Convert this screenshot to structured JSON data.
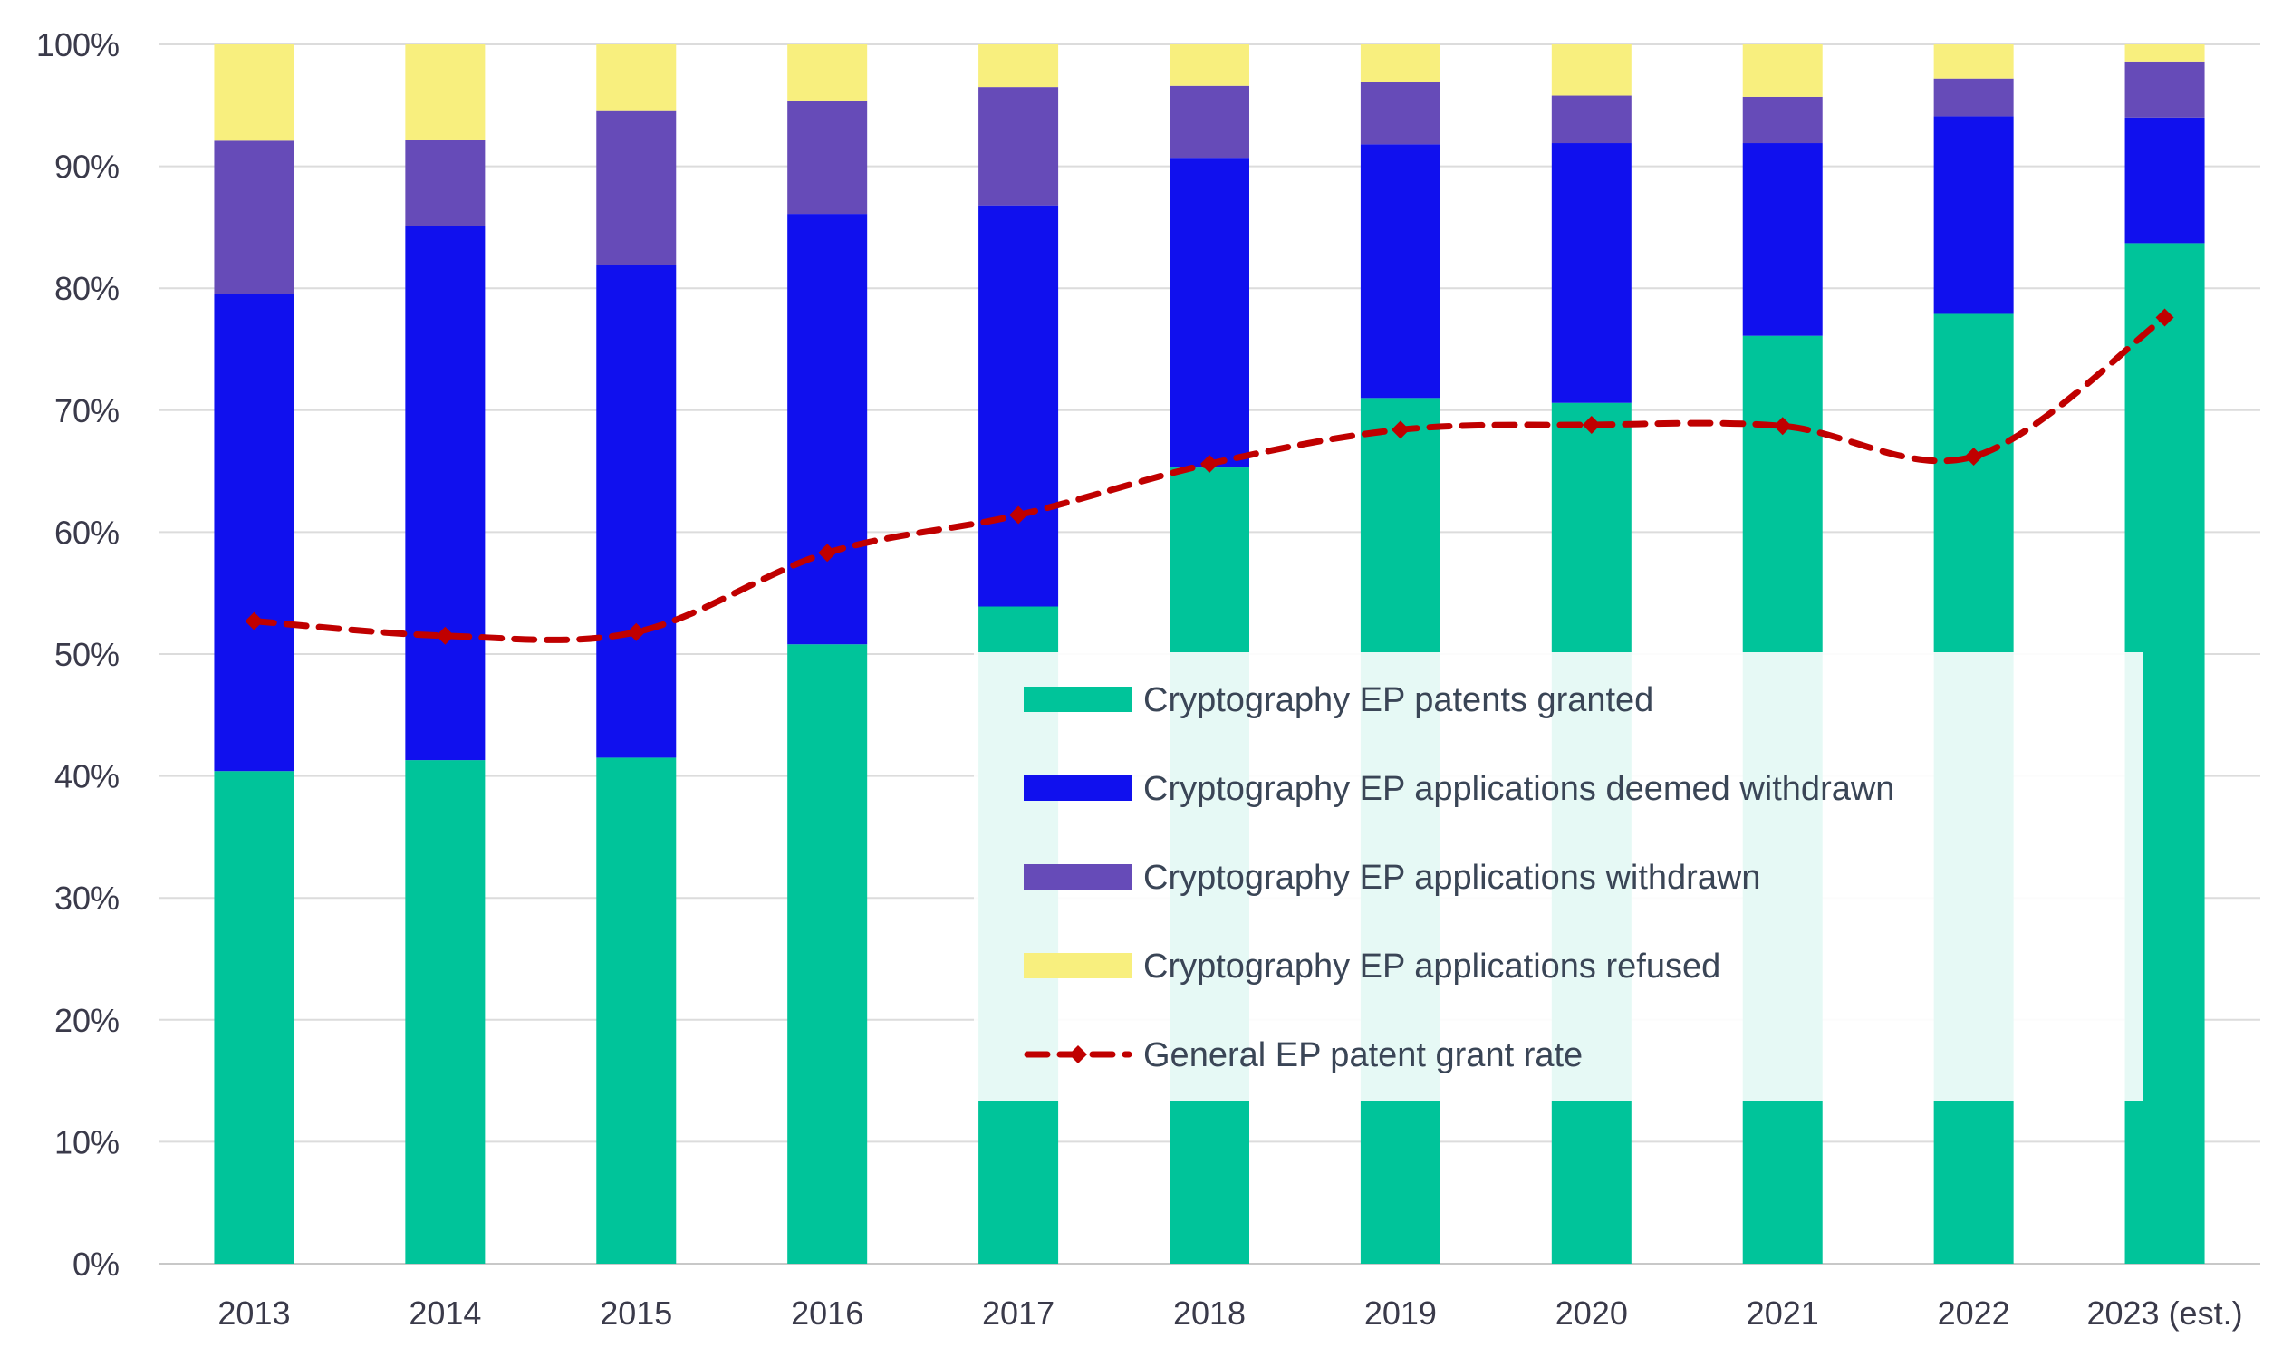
{
  "chart_data": {
    "type": "bar",
    "stacked": true,
    "categories": [
      "2013",
      "2014",
      "2015",
      "2016",
      "2017",
      "2018",
      "2019",
      "2020",
      "2021",
      "2022",
      "2023 (est.)"
    ],
    "series": [
      {
        "name": "Cryptography EP patents granted",
        "color": "#00c49a",
        "values": [
          40.4,
          41.3,
          41.5,
          50.8,
          53.9,
          65.3,
          71.0,
          70.6,
          76.1,
          77.9,
          83.7
        ]
      },
      {
        "name": "Cryptography EP applications deemed withdrawn",
        "color": "#1010ee",
        "values": [
          39.1,
          43.8,
          40.4,
          35.3,
          32.9,
          25.4,
          20.8,
          21.3,
          15.8,
          16.2,
          10.3
        ]
      },
      {
        "name": "Cryptography EP applications withdrawn",
        "color": "#664bb8",
        "values": [
          12.6,
          7.1,
          12.7,
          9.3,
          9.7,
          5.9,
          5.1,
          3.9,
          3.8,
          3.1,
          4.6
        ]
      },
      {
        "name": "Cryptography EP applications refused",
        "color": "#f8ef7e",
        "values": [
          7.9,
          7.8,
          5.4,
          4.6,
          3.5,
          3.4,
          3.1,
          4.2,
          4.3,
          2.8,
          1.4
        ]
      }
    ],
    "line": {
      "name": "General EP patent grant rate",
      "color": "#c00000",
      "style": "dashed",
      "marker": "diamond",
      "values": [
        52.7,
        51.5,
        51.8,
        58.3,
        61.4,
        65.6,
        68.4,
        68.8,
        68.7,
        66.2,
        77.6
      ]
    },
    "ylim": [
      0,
      100
    ],
    "yticks": [
      "0%",
      "10%",
      "20%",
      "30%",
      "40%",
      "50%",
      "60%",
      "70%",
      "80%",
      "90%",
      "100%"
    ],
    "grid": true,
    "legend_position": "lower-right"
  }
}
